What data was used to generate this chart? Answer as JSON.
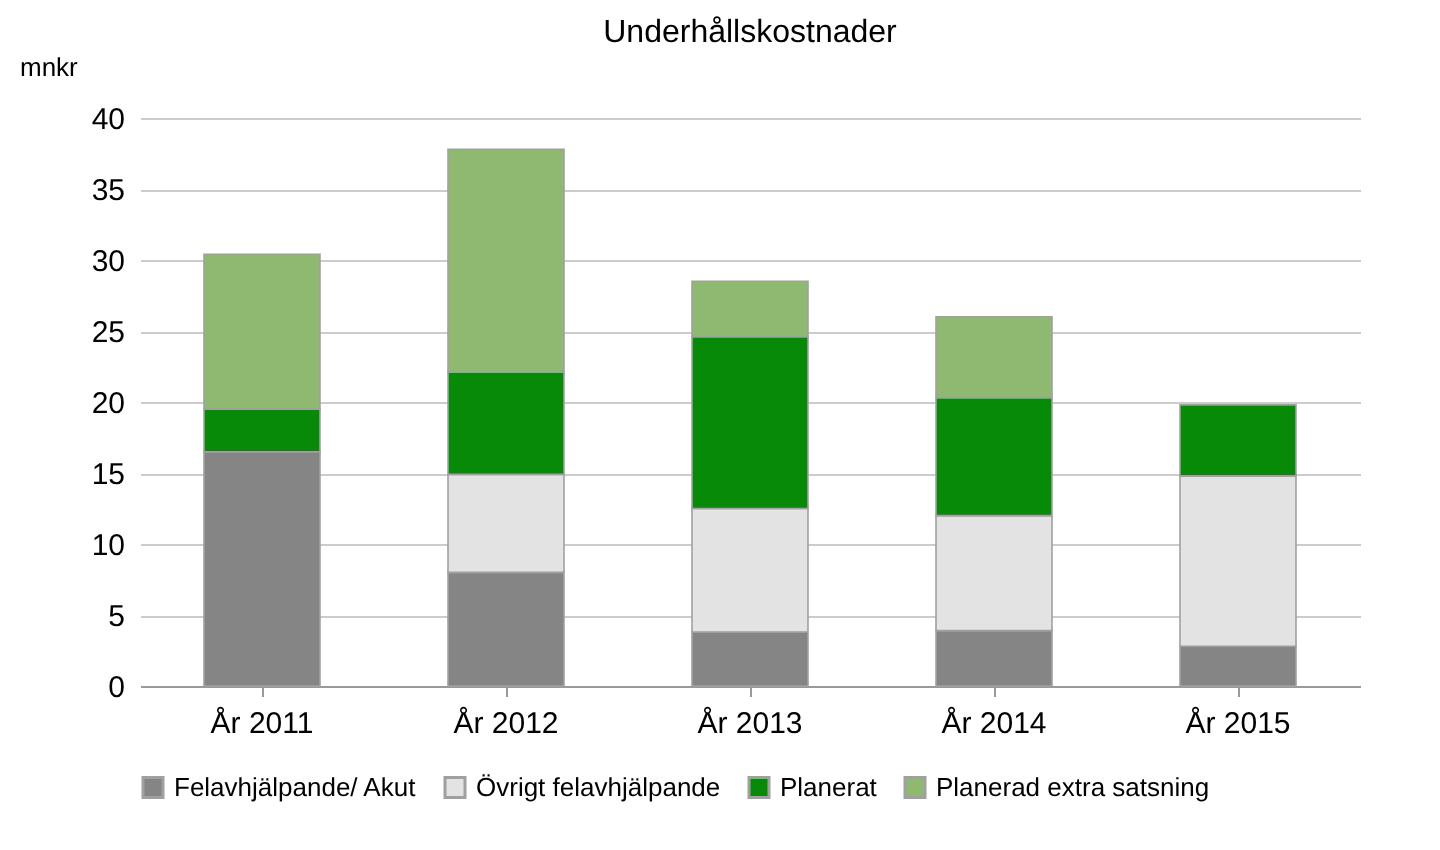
{
  "chart_data": {
    "type": "bar",
    "title": "Underhållskostnader",
    "ylabel": "mnkr",
    "stacked": true,
    "categories": [
      "År 2011",
      "År 2012",
      "År 2013",
      "År 2014",
      "År 2015"
    ],
    "series": [
      {
        "name": "Felavhjälpande/ Akut",
        "color": "#858585",
        "values": [
          16.5,
          8.0,
          3.8,
          3.9,
          2.8
        ]
      },
      {
        "name": "Övrigt felavhjälpande",
        "color": "#e3e3e3",
        "values": [
          null,
          6.9,
          8.7,
          8.1,
          12.0
        ]
      },
      {
        "name": "Planerat",
        "color": "#078a07",
        "values": [
          3.0,
          7.2,
          12.1,
          8.3,
          5.0
        ]
      },
      {
        "name": "Planerad extra satsning",
        "color": "#8fb870",
        "values": [
          10.9,
          15.7,
          3.9,
          5.7,
          null
        ]
      }
    ],
    "ylim": [
      0,
      40
    ],
    "yticks": [
      0,
      5,
      10,
      15,
      20,
      25,
      30,
      35,
      40
    ],
    "grid": "y",
    "legend": "bottom"
  }
}
